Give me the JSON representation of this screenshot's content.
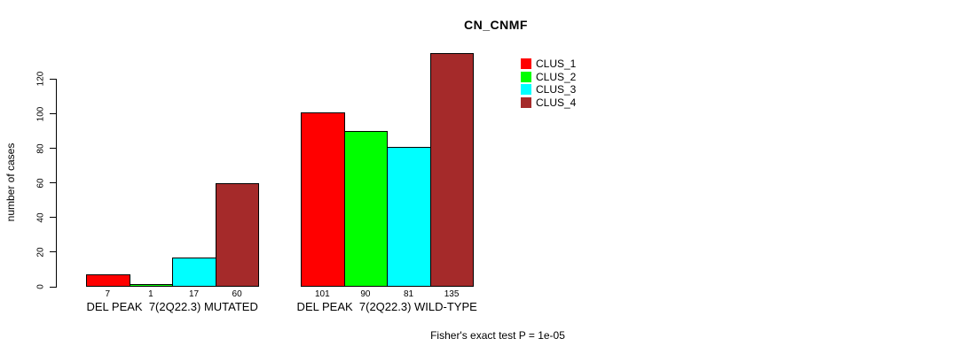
{
  "title": "CN_CNMF",
  "y_axis": {
    "label": "number of cases",
    "ticks": [
      0,
      20,
      40,
      60,
      80,
      100,
      120
    ]
  },
  "legend": {
    "items": [
      {
        "label": "CLUS_1",
        "color": "#FF0000"
      },
      {
        "label": "CLUS_2",
        "color": "#00FF00"
      },
      {
        "label": "CLUS_3",
        "color": "#00FFFF"
      },
      {
        "label": "CLUS_4",
        "color": "#A52A2A"
      }
    ]
  },
  "footer": "Fisher's exact test P = 1e-05",
  "chart_data": {
    "type": "bar",
    "title": "CN_CNMF",
    "xlabel": "",
    "ylabel": "number of cases",
    "ylim": [
      0,
      135
    ],
    "y_ticks": [
      0,
      20,
      40,
      60,
      80,
      100,
      120
    ],
    "grid": false,
    "legend_position": "top-right-inside",
    "value_labels_shown": true,
    "categories": [
      "DEL PEAK  7(2Q22.3) MUTATED",
      "DEL PEAK  7(2Q22.3) WILD-TYPE"
    ],
    "series": [
      {
        "name": "CLUS_1",
        "color": "#FF0000",
        "values": [
          7,
          101
        ]
      },
      {
        "name": "CLUS_2",
        "color": "#00FF00",
        "values": [
          1,
          90
        ]
      },
      {
        "name": "CLUS_3",
        "color": "#00FFFF",
        "values": [
          17,
          81
        ]
      },
      {
        "name": "CLUS_4",
        "color": "#A52A2A",
        "values": [
          60,
          135
        ]
      }
    ],
    "annotation": "Fisher's exact test P = 1e-05"
  }
}
